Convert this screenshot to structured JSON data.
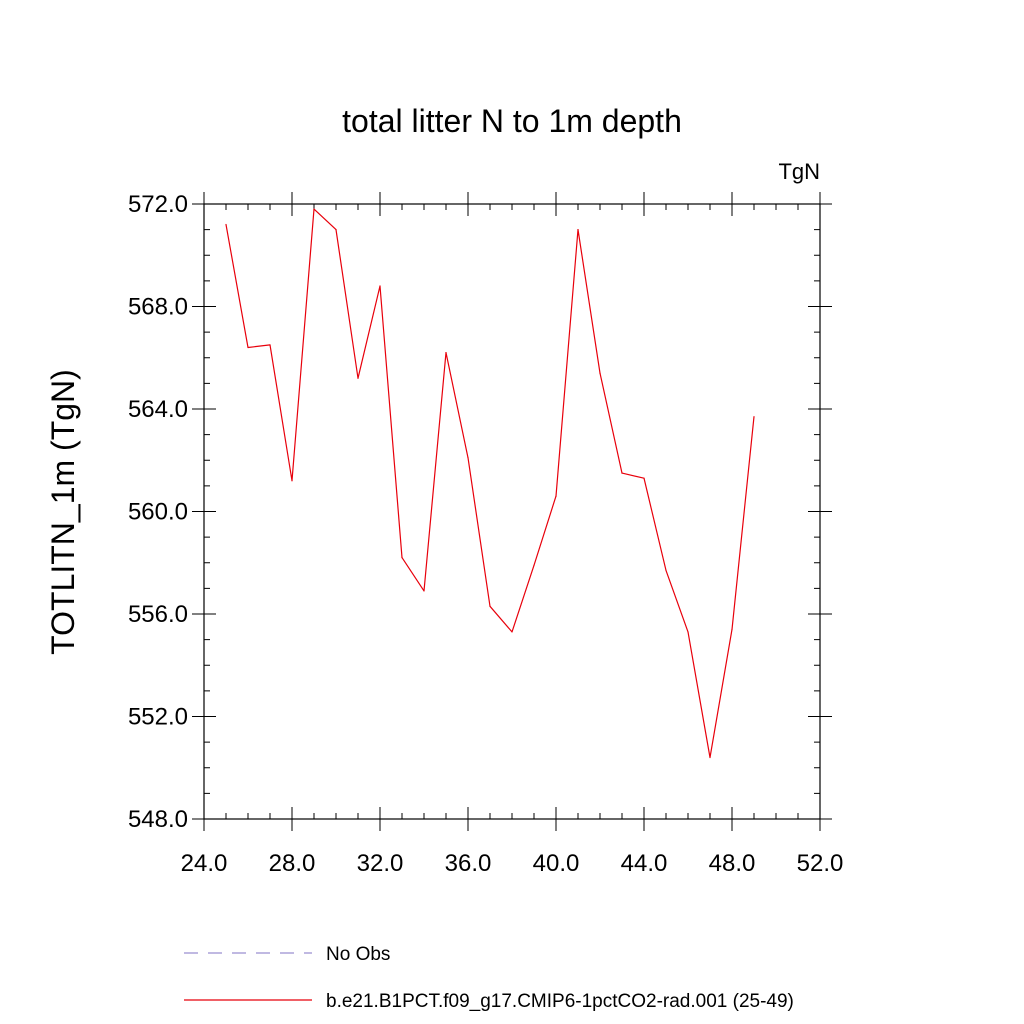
{
  "chart_data": {
    "type": "line",
    "title": "total litter N to 1m depth",
    "units_label": "TgN",
    "ylabel": "TOTLITN_1m  (TgN)",
    "xlabel": "",
    "xlim": [
      24,
      52
    ],
    "ylim": [
      548,
      572
    ],
    "x_ticks": [
      24,
      28,
      32,
      36,
      40,
      44,
      48,
      52
    ],
    "x_tick_labels": [
      "24.0",
      "28.0",
      "32.0",
      "36.0",
      "40.0",
      "44.0",
      "48.0",
      "52.0"
    ],
    "y_ticks": [
      548,
      552,
      556,
      560,
      564,
      568,
      572
    ],
    "y_tick_labels": [
      "548.0",
      "552.0",
      "556.0",
      "560.0",
      "564.0",
      "568.0",
      "572.0"
    ],
    "grid": false,
    "legend_position": "bottom",
    "series": [
      {
        "name": "No Obs",
        "color": "#9b8fd0",
        "style": "dashed",
        "x": [],
        "y": []
      },
      {
        "name": "b.e21.B1PCT.f09_g17.CMIP6-1pctCO2-rad.001 (25-49)",
        "color": "#e8000b",
        "style": "solid",
        "x": [
          25,
          26,
          27,
          28,
          29,
          30,
          31,
          32,
          33,
          34,
          35,
          36,
          37,
          38,
          39,
          40,
          41,
          42,
          43,
          44,
          45,
          46,
          47,
          48,
          49
        ],
        "y": [
          571.2,
          566.4,
          566.5,
          561.2,
          571.8,
          571.0,
          565.2,
          568.8,
          558.2,
          556.9,
          566.2,
          562.1,
          556.3,
          555.3,
          557.9,
          560.6,
          571.0,
          565.4,
          561.5,
          561.3,
          557.7,
          555.3,
          550.4,
          555.4,
          563.7
        ]
      }
    ]
  }
}
